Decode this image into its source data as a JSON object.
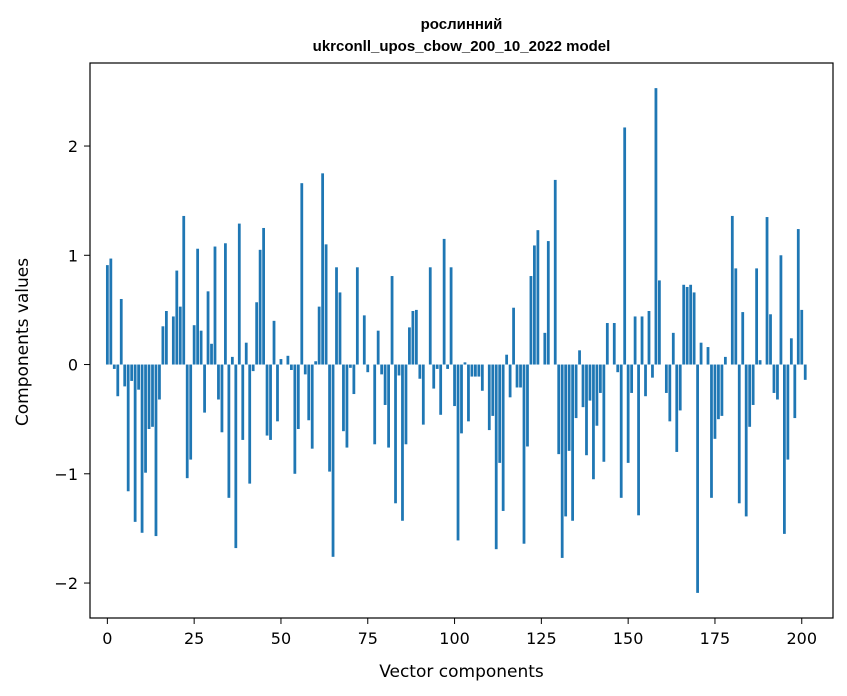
{
  "chart_data": {
    "type": "bar",
    "title": "рослинний",
    "subtitle": "ukrconll_upos_cbow_200_10_2022 model",
    "xlabel": "Vector components",
    "ylabel": "Components values",
    "xlim": [
      -5,
      209
    ],
    "ylim": [
      -2.32,
      2.76
    ],
    "xticks": [
      0,
      25,
      50,
      75,
      100,
      125,
      150,
      175,
      200
    ],
    "yticks": [
      -2,
      -1,
      0,
      1,
      2
    ],
    "grid": false,
    "legend": "none",
    "bar_color": "#1f77b4",
    "values": [
      0.91,
      0.97,
      -0.04,
      -0.29,
      0.6,
      -0.2,
      -1.16,
      -0.15,
      -1.44,
      -0.23,
      -1.54,
      -0.99,
      -0.59,
      -0.57,
      -1.57,
      -0.32,
      0.35,
      0.49,
      0.0,
      0.44,
      0.86,
      0.53,
      1.36,
      -1.04,
      -0.87,
      0.36,
      1.06,
      0.31,
      -0.44,
      0.67,
      0.19,
      1.08,
      -0.32,
      -0.62,
      1.11,
      -1.22,
      0.07,
      -1.68,
      1.29,
      -0.69,
      0.2,
      -1.09,
      -0.06,
      0.57,
      1.05,
      1.25,
      -0.65,
      -0.69,
      0.4,
      -0.52,
      0.05,
      0.0,
      0.08,
      -0.05,
      -1.0,
      -0.59,
      1.66,
      -0.09,
      -0.51,
      -0.77,
      0.03,
      0.53,
      1.75,
      1.1,
      -0.98,
      -1.76,
      0.89,
      0.66,
      -0.61,
      -0.76,
      -0.03,
      -0.27,
      0.89,
      0.0,
      0.45,
      -0.07,
      0.0,
      -0.73,
      0.31,
      -0.09,
      -0.37,
      -0.76,
      0.81,
      -1.27,
      -0.1,
      -1.43,
      -0.73,
      0.34,
      0.49,
      0.5,
      -0.13,
      -0.55,
      0.0,
      0.89,
      -0.22,
      -0.04,
      -0.46,
      1.15,
      -0.04,
      0.89,
      -0.38,
      -1.61,
      -0.63,
      0.02,
      -0.52,
      -0.11,
      -0.11,
      -0.11,
      -0.24,
      0.0,
      -0.6,
      -0.47,
      -1.69,
      -0.9,
      -1.34,
      0.09,
      -0.3,
      0.52,
      -0.21,
      -0.21,
      -1.64,
      -0.75,
      0.81,
      1.09,
      1.23,
      0.0,
      0.29,
      1.13,
      0.0,
      1.69,
      -0.82,
      -1.77,
      -1.39,
      -0.79,
      -1.43,
      -0.49,
      0.13,
      -0.39,
      -0.83,
      -0.33,
      -1.05,
      -0.56,
      -0.26,
      -0.89,
      0.38,
      0.0,
      0.38,
      -0.07,
      -1.22,
      2.17,
      -0.9,
      -0.26,
      0.44,
      -1.38,
      0.44,
      -0.29,
      0.49,
      -0.12,
      2.53,
      0.77,
      0.0,
      -0.26,
      -0.52,
      0.29,
      -0.8,
      -0.42,
      0.73,
      0.71,
      0.73,
      0.66,
      -2.09,
      0.2,
      0.0,
      0.16,
      -1.22,
      -0.68,
      -0.5,
      -0.47,
      0.07,
      0.0,
      1.36,
      0.88,
      -1.27,
      0.48,
      -1.39,
      -0.57,
      -0.37,
      0.88,
      0.04,
      0.0,
      1.35,
      0.46,
      -0.26,
      -0.32,
      1.0,
      -1.55,
      -0.87,
      0.24,
      -0.49,
      1.24,
      0.5,
      -0.14
    ]
  }
}
